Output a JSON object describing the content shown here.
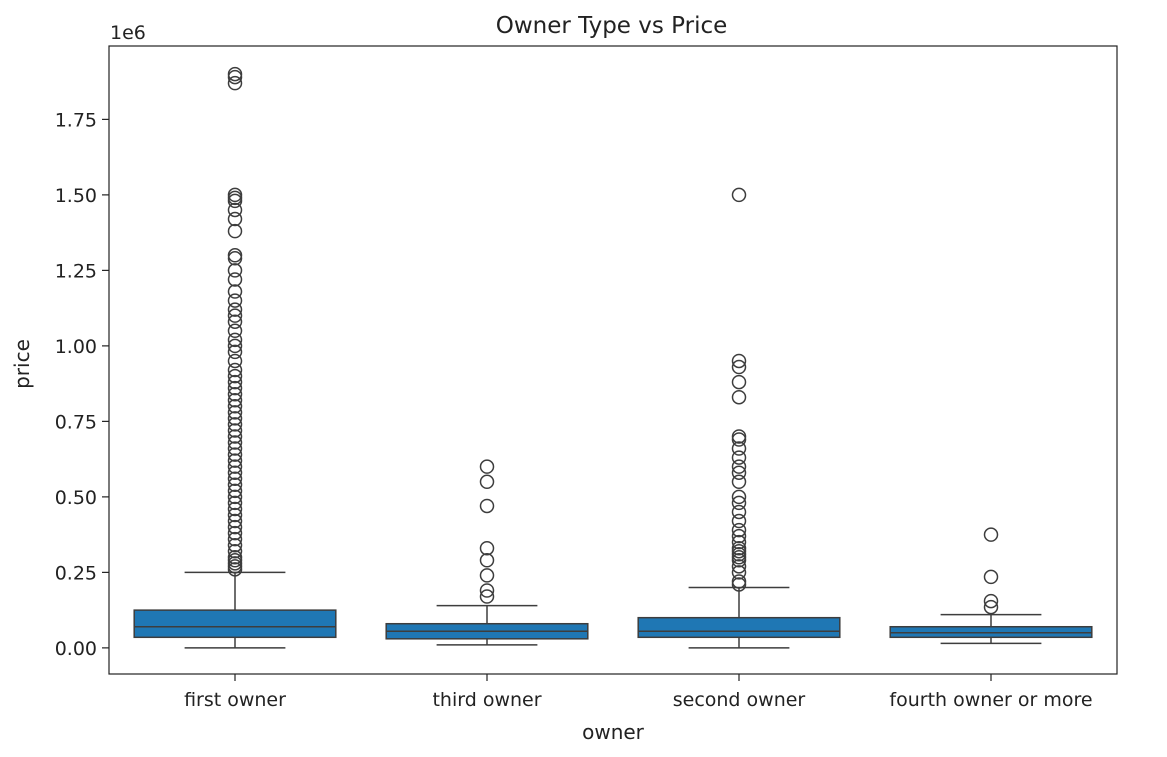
{
  "chart_data": {
    "type": "box",
    "title": "Owner Type vs Price",
    "xlabel": "owner",
    "ylabel": "price",
    "y_offset_label": "1e6",
    "ylim": [
      -0.0865,
      1.993
    ],
    "y_ticks": [
      0.0,
      0.25,
      0.5,
      0.75,
      1.0,
      1.25,
      1.5,
      1.75
    ],
    "y_tick_labels": [
      "0.00",
      "0.25",
      "0.50",
      "0.75",
      "1.00",
      "1.25",
      "1.50",
      "1.75"
    ],
    "y_unit_multiplier": 1000000,
    "grid": false,
    "box_color": "#1f77b4",
    "categories": [
      "first owner",
      "third owner",
      "second owner",
      "fourth owner or more"
    ],
    "boxes": [
      {
        "category": "first owner",
        "whisker_low": 0.0,
        "q1": 0.035,
        "median": 0.07,
        "q3": 0.125,
        "whisker_high": 0.25,
        "outliers": [
          1.9,
          1.89,
          1.87,
          1.5,
          1.49,
          1.48,
          1.45,
          1.42,
          1.38,
          1.3,
          1.29,
          1.25,
          1.22,
          1.18,
          1.15,
          1.12,
          1.1,
          1.08,
          1.05,
          1.02,
          1.0,
          0.98,
          0.95,
          0.92,
          0.9,
          0.88,
          0.86,
          0.84,
          0.82,
          0.8,
          0.78,
          0.76,
          0.74,
          0.72,
          0.7,
          0.68,
          0.66,
          0.64,
          0.62,
          0.6,
          0.58,
          0.56,
          0.54,
          0.52,
          0.5,
          0.48,
          0.46,
          0.44,
          0.42,
          0.4,
          0.38,
          0.36,
          0.34,
          0.32,
          0.3,
          0.29,
          0.28,
          0.27,
          0.26
        ]
      },
      {
        "category": "third owner",
        "whisker_low": 0.01,
        "q1": 0.03,
        "median": 0.055,
        "q3": 0.08,
        "whisker_high": 0.14,
        "outliers": [
          0.6,
          0.55,
          0.47,
          0.33,
          0.29,
          0.24,
          0.19,
          0.17
        ]
      },
      {
        "category": "second owner",
        "whisker_low": 0.0,
        "q1": 0.035,
        "median": 0.055,
        "q3": 0.1,
        "whisker_high": 0.2,
        "outliers": [
          1.5,
          0.95,
          0.93,
          0.88,
          0.83,
          0.7,
          0.69,
          0.66,
          0.63,
          0.6,
          0.58,
          0.55,
          0.5,
          0.48,
          0.45,
          0.42,
          0.39,
          0.37,
          0.35,
          0.33,
          0.32,
          0.31,
          0.3,
          0.29,
          0.27,
          0.25,
          0.22,
          0.21
        ]
      },
      {
        "category": "fourth owner or more",
        "whisker_low": 0.015,
        "q1": 0.035,
        "median": 0.05,
        "q3": 0.07,
        "whisker_high": 0.11,
        "outliers": [
          0.375,
          0.235,
          0.155,
          0.135
        ]
      }
    ]
  }
}
